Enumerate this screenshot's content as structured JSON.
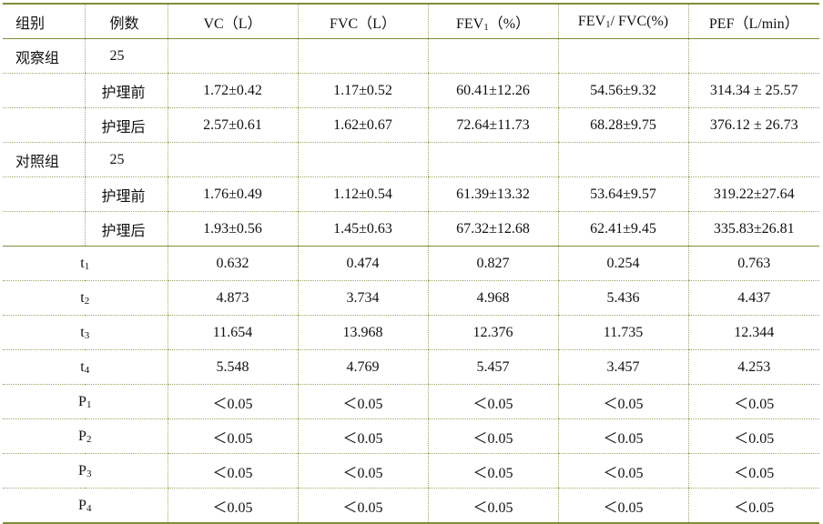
{
  "headers": {
    "group": "组别",
    "count": "例数",
    "vc": "VC（L）",
    "fvc": "FVC（L）",
    "fev1_base": "FEV",
    "fev1_sub": "1",
    "fev1_tail": "（%）",
    "ratio_base": "FEV",
    "ratio_sub": "1",
    "ratio_tail": "/ FVC(%)",
    "pef": "PEF（L/min）"
  },
  "groups": [
    {
      "name": "观察组",
      "count": "25",
      "rows": [
        {
          "label": "护理前",
          "vc": "1.72±0.42",
          "fvc": "1.17±0.52",
          "fev1": "60.41±12.26",
          "ratio": "54.56±9.32",
          "pef": "314.34 ± 25.57"
        },
        {
          "label": "护理后",
          "vc": "2.57±0.61",
          "fvc": "1.62±0.67",
          "fev1": "72.64±11.73",
          "ratio": "68.28±9.75",
          "pef": "376.12 ± 26.73"
        }
      ]
    },
    {
      "name": "对照组",
      "count": "25",
      "rows": [
        {
          "label": "护理前",
          "vc": "1.76±0.49",
          "fvc": "1.12±0.54",
          "fev1": "61.39±13.32",
          "ratio": "53.64±9.57",
          "pef": "319.22±27.64"
        },
        {
          "label": "护理后",
          "vc": "1.93±0.56",
          "fvc": "1.45±0.63",
          "fev1": "67.32±12.68",
          "ratio": "62.41±9.45",
          "pef": "335.83±26.81"
        }
      ]
    }
  ],
  "stats": [
    {
      "base": "t",
      "sub": "1",
      "vc": "0.632",
      "fvc": "0.474",
      "fev1": "0.827",
      "ratio": "0.254",
      "pef": "0.763"
    },
    {
      "base": "t",
      "sub": "2",
      "vc": "4.873",
      "fvc": "3.734",
      "fev1": "4.968",
      "ratio": "5.436",
      "pef": "4.437"
    },
    {
      "base": "t",
      "sub": "3",
      "vc": "11.654",
      "fvc": "13.968",
      "fev1": "12.376",
      "ratio": "11.735",
      "pef": "12.344"
    },
    {
      "base": "t",
      "sub": "4",
      "vc": "5.548",
      "fvc": "4.769",
      "fev1": "5.457",
      "ratio": "3.457",
      "pef": "4.253"
    },
    {
      "base": "P",
      "sub": "1",
      "vc": "＜0.05",
      "fvc": "＜0.05",
      "fev1": "＜0.05",
      "ratio": "＜0.05",
      "pef": "＜0.05"
    },
    {
      "base": "P",
      "sub": "2",
      "vc": "＜0.05",
      "fvc": "＜0.05",
      "fev1": "＜0.05",
      "ratio": "＜0.05",
      "pef": "＜0.05"
    },
    {
      "base": "P",
      "sub": "3",
      "vc": "＜0.05",
      "fvc": "＜0.05",
      "fev1": "＜0.05",
      "ratio": "＜0.05",
      "pef": "＜0.05"
    },
    {
      "base": "P",
      "sub": "4",
      "vc": "＜0.05",
      "fvc": "＜0.05",
      "fev1": "＜0.05",
      "ratio": "＜0.05",
      "pef": "＜0.05"
    }
  ]
}
